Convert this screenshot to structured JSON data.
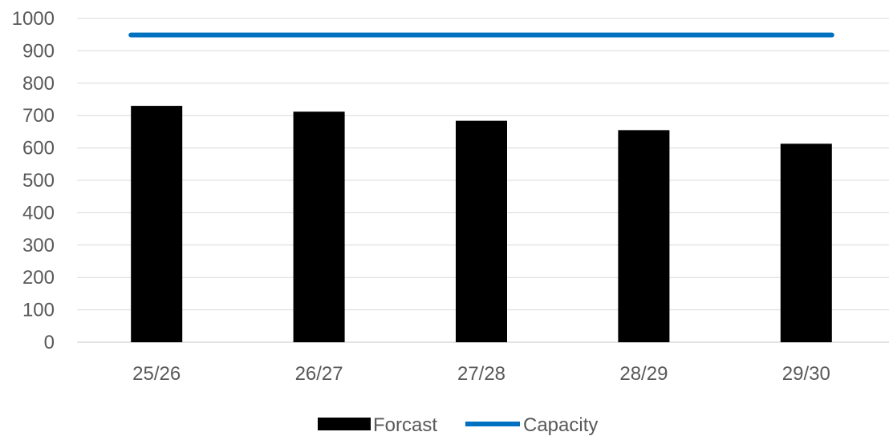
{
  "chart_data": {
    "type": "bar",
    "title": "",
    "xlabel": "",
    "ylabel": "",
    "categories": [
      "25/26",
      "26/27",
      "27/28",
      "28/29",
      "29/30"
    ],
    "series": [
      {
        "name": "Forcast",
        "type": "bar",
        "color": "#000000",
        "values": [
          730,
          712,
          684,
          655,
          613
        ]
      },
      {
        "name": "Capacity",
        "type": "line",
        "color": "#0070c0",
        "values": [
          949,
          949,
          949,
          949,
          949
        ]
      }
    ],
    "ylim": [
      0,
      1000
    ],
    "yticks": [
      "0",
      "100",
      "200",
      "300",
      "400",
      "500",
      "600",
      "700",
      "800",
      "900",
      "1000"
    ],
    "grid": true,
    "legend_position": "bottom"
  }
}
